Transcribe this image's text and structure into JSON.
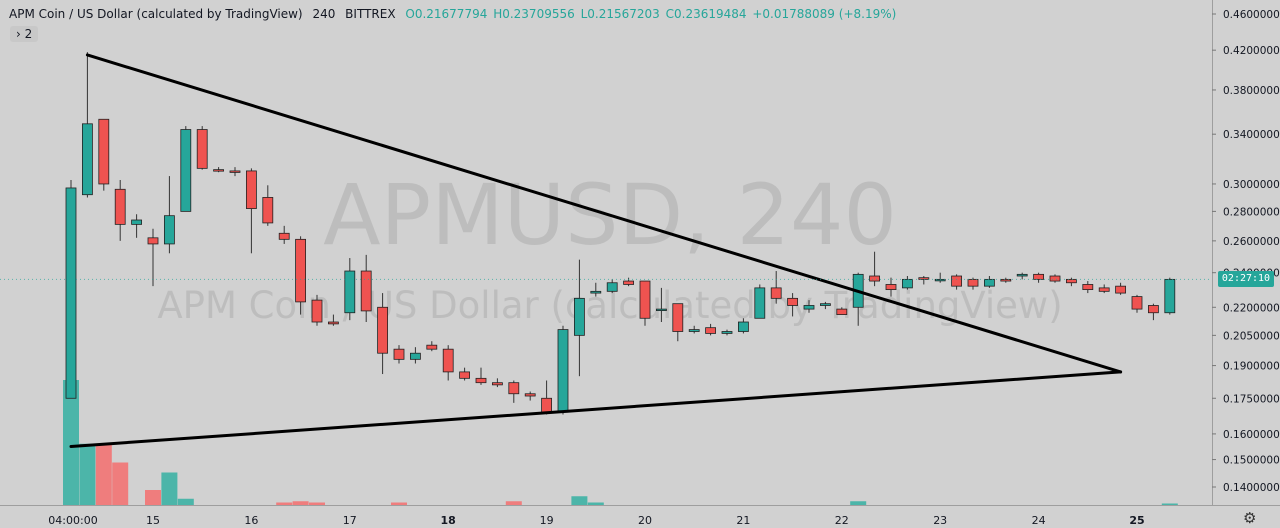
{
  "header": {
    "symbol_title": "APM Coin / US Dollar (calculated by TradingView)",
    "interval": "240",
    "exchange": "BITTREX",
    "open": "O0.21677794",
    "high": "H0.23709556",
    "low": "L0.21567203",
    "close": "C0.23619484",
    "change": "+0.01788089 (+8.19%)"
  },
  "indicators_toggle": "› 2",
  "watermark": {
    "line1": "APMUSD, 240",
    "line2": "APM Coin / US Dollar (calculated by TradingView)"
  },
  "countdown": "02:27:10",
  "colors": {
    "up": "#26a69a",
    "down": "#ef5350",
    "background": "#d1d1d1",
    "trendline": "#000000"
  },
  "chart_data": {
    "type": "candlestick",
    "y_scale": "log",
    "y_ticks": [
      "0.46000000",
      "0.42000000",
      "0.38000000",
      "0.34000000",
      "0.30000000",
      "0.28000000",
      "0.26000000",
      "0.24000000",
      "0.22000000",
      "0.20500000",
      "0.19000000",
      "0.17500000",
      "0.16000000",
      "0.15000000",
      "0.14000000"
    ],
    "x_ticks": [
      "04:00:00",
      "15",
      "16",
      "17",
      "18",
      "19",
      "20",
      "21",
      "22",
      "23",
      "24",
      "25"
    ],
    "current_price_label": "0.23619484",
    "candles": [
      {
        "o": 0.175,
        "h": 0.303,
        "l": 0.175,
        "c": 0.297
      },
      {
        "o": 0.292,
        "h": 0.418,
        "l": 0.29,
        "c": 0.349
      },
      {
        "o": 0.353,
        "h": 0.353,
        "l": 0.295,
        "c": 0.3
      },
      {
        "o": 0.296,
        "h": 0.303,
        "l": 0.26,
        "c": 0.271
      },
      {
        "o": 0.271,
        "h": 0.278,
        "l": 0.262,
        "c": 0.274
      },
      {
        "o": 0.262,
        "h": 0.268,
        "l": 0.232,
        "c": 0.258
      },
      {
        "o": 0.258,
        "h": 0.306,
        "l": 0.252,
        "c": 0.277
      },
      {
        "o": 0.28,
        "h": 0.347,
        "l": 0.28,
        "c": 0.344
      },
      {
        "o": 0.344,
        "h": 0.347,
        "l": 0.311,
        "c": 0.312
      },
      {
        "o": 0.311,
        "h": 0.313,
        "l": 0.309,
        "c": 0.31
      },
      {
        "o": 0.31,
        "h": 0.313,
        "l": 0.306,
        "c": 0.309
      },
      {
        "o": 0.31,
        "h": 0.312,
        "l": 0.252,
        "c": 0.282
      },
      {
        "o": 0.29,
        "h": 0.299,
        "l": 0.27,
        "c": 0.272
      },
      {
        "o": 0.265,
        "h": 0.27,
        "l": 0.258,
        "c": 0.261
      },
      {
        "o": 0.261,
        "h": 0.263,
        "l": 0.216,
        "c": 0.223
      },
      {
        "o": 0.224,
        "h": 0.227,
        "l": 0.21,
        "c": 0.212
      },
      {
        "o": 0.212,
        "h": 0.216,
        "l": 0.21,
        "c": 0.211
      },
      {
        "o": 0.217,
        "h": 0.249,
        "l": 0.213,
        "c": 0.241
      },
      {
        "o": 0.241,
        "h": 0.251,
        "l": 0.212,
        "c": 0.218
      },
      {
        "o": 0.22,
        "h": 0.228,
        "l": 0.186,
        "c": 0.196
      },
      {
        "o": 0.198,
        "h": 0.2,
        "l": 0.191,
        "c": 0.193
      },
      {
        "o": 0.193,
        "h": 0.199,
        "l": 0.191,
        "c": 0.196
      },
      {
        "o": 0.2,
        "h": 0.202,
        "l": 0.197,
        "c": 0.198
      },
      {
        "o": 0.198,
        "h": 0.2,
        "l": 0.183,
        "c": 0.187
      },
      {
        "o": 0.187,
        "h": 0.189,
        "l": 0.183,
        "c": 0.184
      },
      {
        "o": 0.184,
        "h": 0.189,
        "l": 0.181,
        "c": 0.182
      },
      {
        "o": 0.182,
        "h": 0.184,
        "l": 0.18,
        "c": 0.181
      },
      {
        "o": 0.182,
        "h": 0.183,
        "l": 0.173,
        "c": 0.177
      },
      {
        "o": 0.177,
        "h": 0.178,
        "l": 0.174,
        "c": 0.176
      },
      {
        "o": 0.175,
        "h": 0.183,
        "l": 0.168,
        "c": 0.169
      },
      {
        "o": 0.169,
        "h": 0.21,
        "l": 0.168,
        "c": 0.208
      },
      {
        "o": 0.205,
        "h": 0.248,
        "l": 0.185,
        "c": 0.225
      },
      {
        "o": 0.228,
        "h": 0.234,
        "l": 0.226,
        "c": 0.229
      },
      {
        "o": 0.229,
        "h": 0.236,
        "l": 0.228,
        "c": 0.234
      },
      {
        "o": 0.235,
        "h": 0.237,
        "l": 0.232,
        "c": 0.233
      },
      {
        "o": 0.235,
        "h": 0.235,
        "l": 0.21,
        "c": 0.214
      },
      {
        "o": 0.219,
        "h": 0.231,
        "l": 0.212,
        "c": 0.219
      },
      {
        "o": 0.222,
        "h": 0.222,
        "l": 0.202,
        "c": 0.207
      },
      {
        "o": 0.207,
        "h": 0.21,
        "l": 0.206,
        "c": 0.208
      },
      {
        "o": 0.209,
        "h": 0.211,
        "l": 0.205,
        "c": 0.206
      },
      {
        "o": 0.206,
        "h": 0.208,
        "l": 0.205,
        "c": 0.207
      },
      {
        "o": 0.207,
        "h": 0.214,
        "l": 0.206,
        "c": 0.212
      },
      {
        "o": 0.214,
        "h": 0.233,
        "l": 0.214,
        "c": 0.231
      },
      {
        "o": 0.231,
        "h": 0.241,
        "l": 0.222,
        "c": 0.225
      },
      {
        "o": 0.225,
        "h": 0.228,
        "l": 0.215,
        "c": 0.221
      },
      {
        "o": 0.219,
        "h": 0.224,
        "l": 0.217,
        "c": 0.221
      },
      {
        "o": 0.221,
        "h": 0.223,
        "l": 0.219,
        "c": 0.222
      },
      {
        "o": 0.219,
        "h": 0.22,
        "l": 0.216,
        "c": 0.216
      },
      {
        "o": 0.22,
        "h": 0.24,
        "l": 0.21,
        "c": 0.239
      },
      {
        "o": 0.238,
        "h": 0.253,
        "l": 0.232,
        "c": 0.235
      },
      {
        "o": 0.233,
        "h": 0.237,
        "l": 0.226,
        "c": 0.23
      },
      {
        "o": 0.231,
        "h": 0.238,
        "l": 0.23,
        "c": 0.236
      },
      {
        "o": 0.237,
        "h": 0.238,
        "l": 0.233,
        "c": 0.236
      },
      {
        "o": 0.236,
        "h": 0.24,
        "l": 0.234,
        "c": 0.236
      },
      {
        "o": 0.238,
        "h": 0.239,
        "l": 0.23,
        "c": 0.232
      },
      {
        "o": 0.236,
        "h": 0.237,
        "l": 0.23,
        "c": 0.232
      },
      {
        "o": 0.232,
        "h": 0.238,
        "l": 0.231,
        "c": 0.236
      },
      {
        "o": 0.236,
        "h": 0.237,
        "l": 0.234,
        "c": 0.235
      },
      {
        "o": 0.238,
        "h": 0.24,
        "l": 0.236,
        "c": 0.239
      },
      {
        "o": 0.239,
        "h": 0.24,
        "l": 0.234,
        "c": 0.236
      },
      {
        "o": 0.238,
        "h": 0.239,
        "l": 0.234,
        "c": 0.235
      },
      {
        "o": 0.236,
        "h": 0.237,
        "l": 0.232,
        "c": 0.234
      },
      {
        "o": 0.233,
        "h": 0.235,
        "l": 0.228,
        "c": 0.23
      },
      {
        "o": 0.231,
        "h": 0.233,
        "l": 0.228,
        "c": 0.229
      },
      {
        "o": 0.232,
        "h": 0.234,
        "l": 0.227,
        "c": 0.228
      },
      {
        "o": 0.226,
        "h": 0.227,
        "l": 0.217,
        "c": 0.219
      },
      {
        "o": 0.221,
        "h": 0.222,
        "l": 0.213,
        "c": 0.217
      },
      {
        "o": 0.217,
        "h": 0.237,
        "l": 0.216,
        "c": 0.236
      }
    ],
    "volume_relative": [
      1.0,
      0.49,
      0.48,
      0.34,
      0.0,
      0.12,
      0.26,
      0.05,
      0.0,
      0.0,
      0.0,
      0.0,
      0.0,
      0.02,
      0.03,
      0.02,
      0.0,
      0.0,
      0.0,
      0.0,
      0.02,
      0.0,
      0.0,
      0.0,
      0.0,
      0.0,
      0.0,
      0.03,
      0.0,
      0.0,
      0.0,
      0.07,
      0.02,
      0.0,
      0.0,
      0.0,
      0.0,
      0.0,
      0.0,
      0.0,
      0.0,
      0.0,
      0.0,
      0.0,
      0.0,
      0.0,
      0.0,
      0.0,
      0.03,
      0.0,
      0.0,
      0.0,
      0.0,
      0.0,
      0.0,
      0.0,
      0.0,
      0.0,
      0.0,
      0.0,
      0.0,
      0.0,
      0.0,
      0.0,
      0.0,
      0.0,
      0.0,
      0.01
    ],
    "trendlines": [
      {
        "from": {
          "bar": 1,
          "price": 0.415
        },
        "to": {
          "bar": 64,
          "price": 0.187
        }
      },
      {
        "from": {
          "bar": 0,
          "price": 0.155
        },
        "to": {
          "bar": 64,
          "price": 0.187
        }
      }
    ]
  }
}
